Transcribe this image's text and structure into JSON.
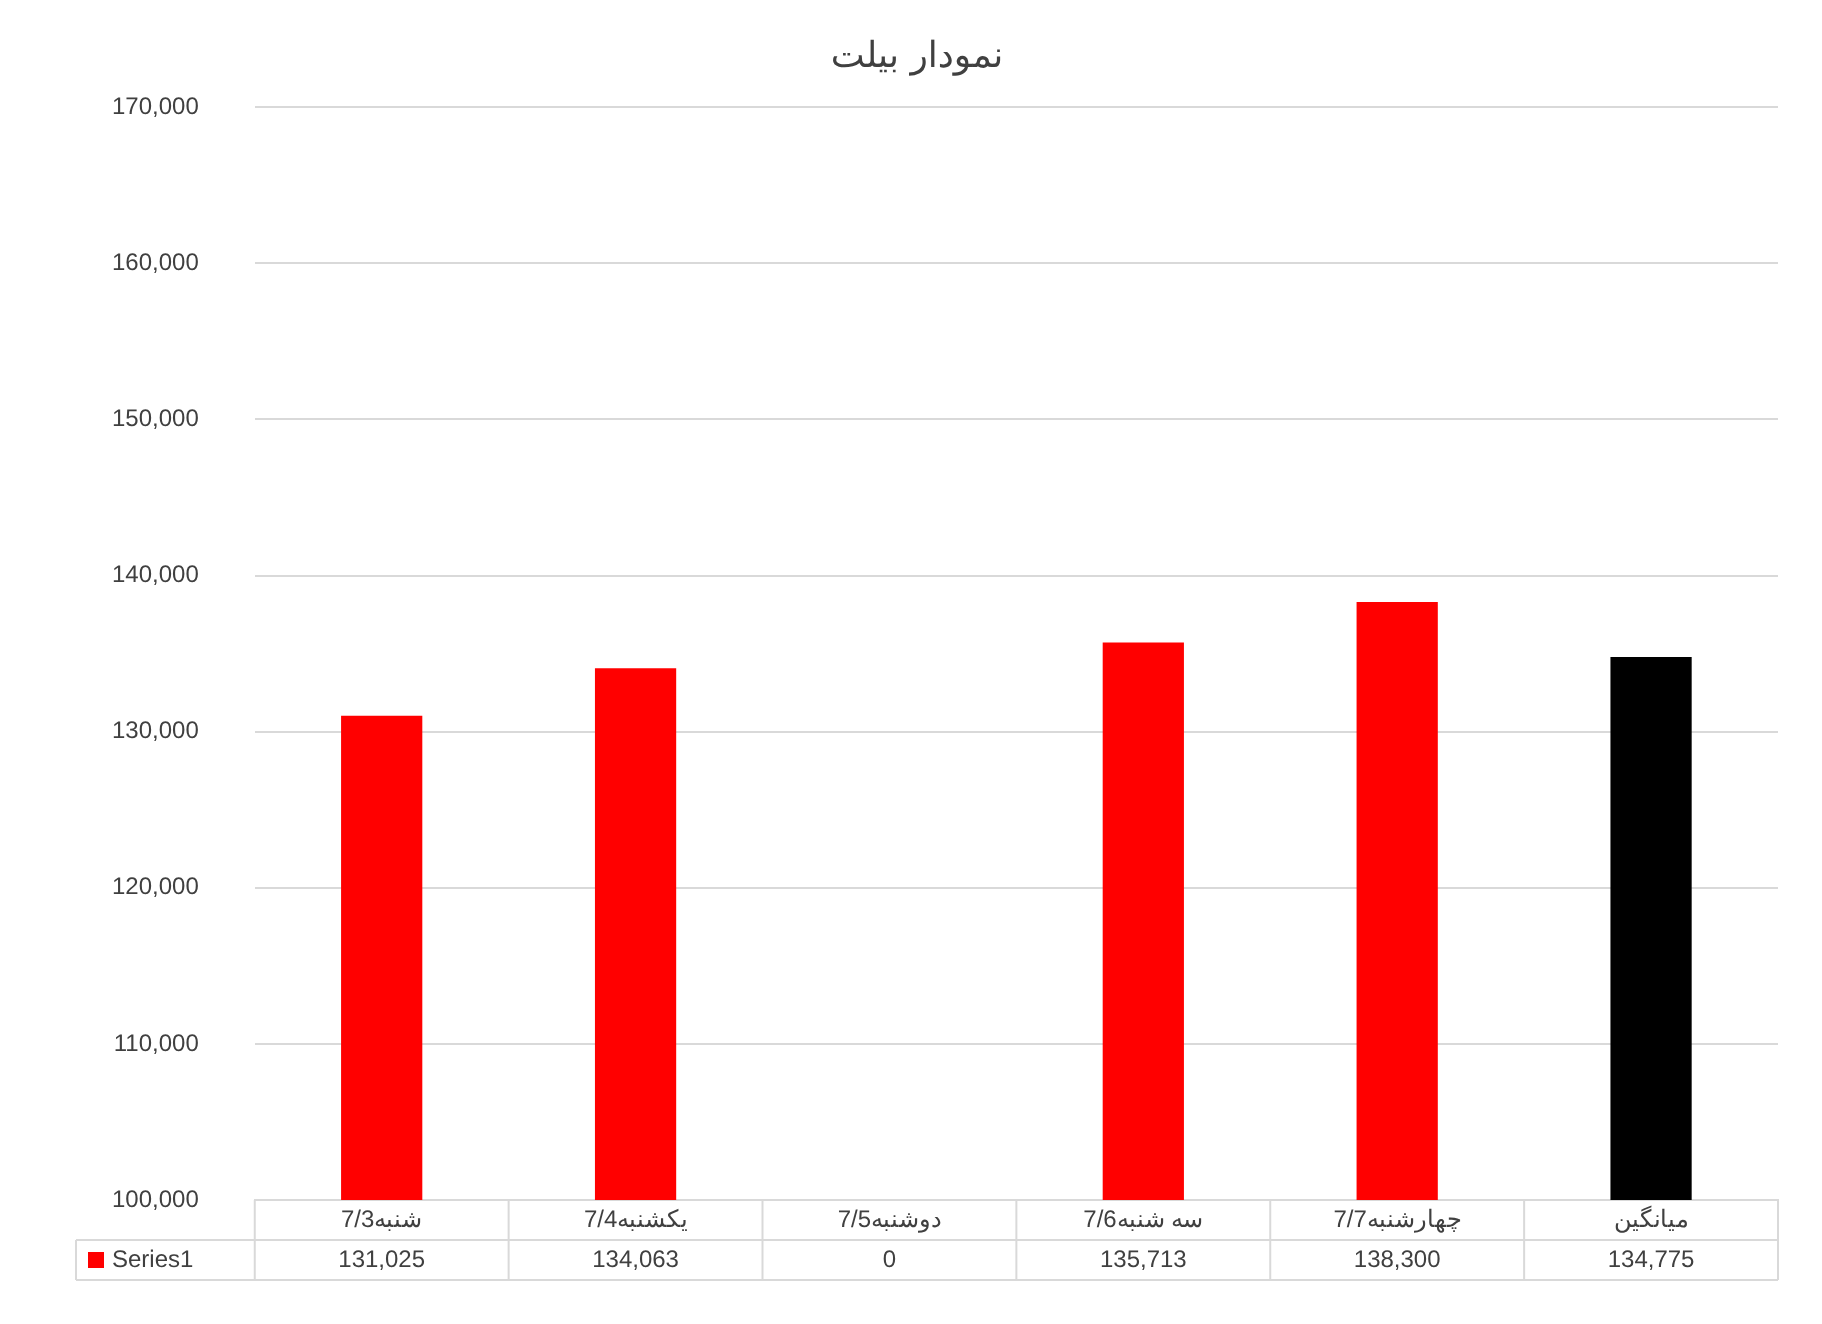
{
  "chart_data": {
    "type": "bar",
    "title": "نمودار بیلت",
    "categories": [
      "شنبه7/3",
      "یکشنبه7/4",
      "دوشنبه7/5",
      "سه شنبه7/6",
      "چهارشنبه7/7",
      "میانگین"
    ],
    "series": [
      {
        "name": "Series1",
        "color": "#ff0000",
        "colors": [
          "#ff0000",
          "#ff0000",
          "#ff0000",
          "#ff0000",
          "#ff0000",
          "#000000"
        ],
        "values": [
          131025,
          134063,
          null,
          135713,
          138300,
          134775
        ],
        "value_labels": [
          "131,025",
          "134,063",
          "0",
          "135,713",
          "138,300",
          "134,775"
        ]
      }
    ],
    "ylim": [
      100000,
      170000
    ],
    "yticks": [
      {
        "value": 100000,
        "label": "100,000"
      },
      {
        "value": 110000,
        "label": "110,000"
      },
      {
        "value": 120000,
        "label": "120,000"
      },
      {
        "value": 130000,
        "label": "130,000"
      },
      {
        "value": 140000,
        "label": "140,000"
      },
      {
        "value": 150000,
        "label": "150,000"
      },
      {
        "value": 160000,
        "label": "160,000"
      },
      {
        "value": 170000,
        "label": "170,000"
      }
    ],
    "grid": "y",
    "legend": "bottom left"
  }
}
